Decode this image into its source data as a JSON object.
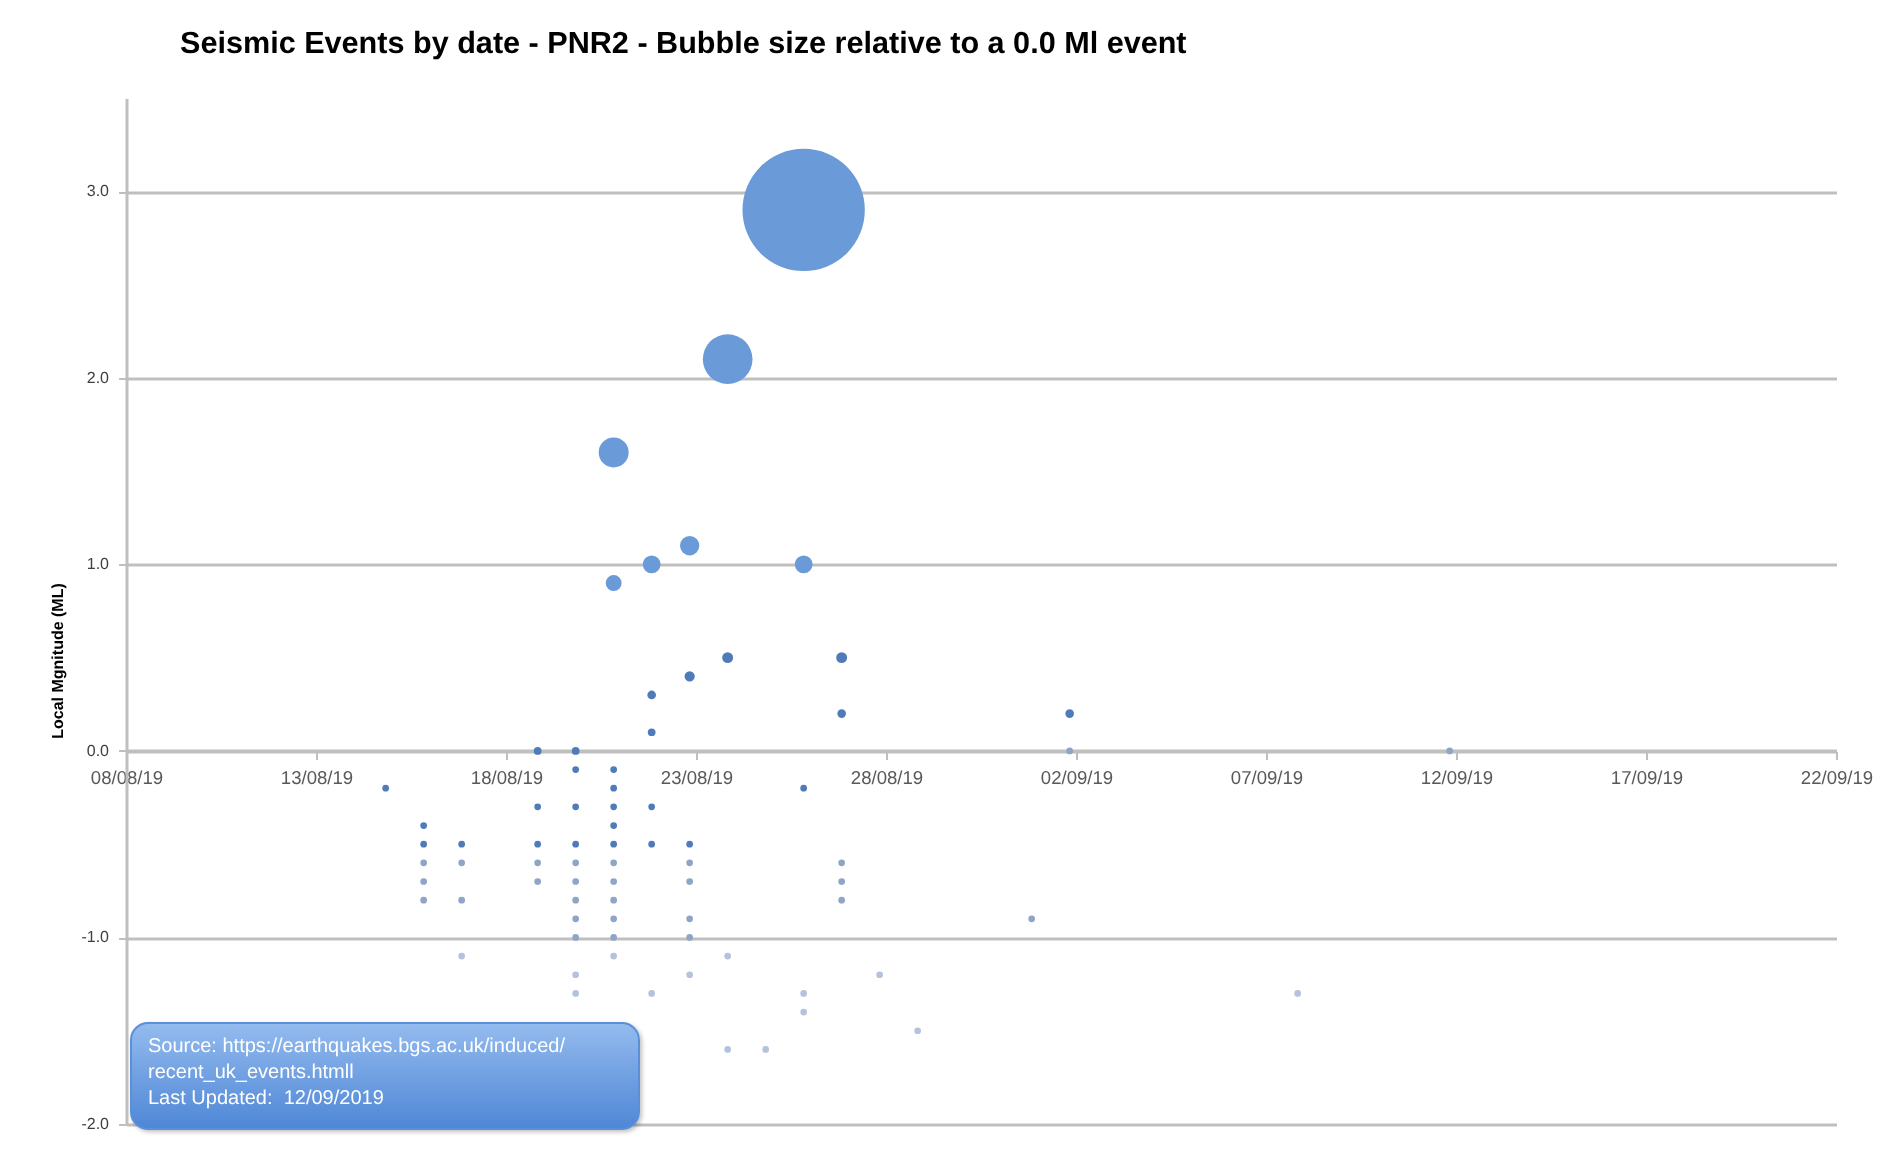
{
  "chart_data": {
    "type": "bubble",
    "title": "Seismic Events by date - PNR2 - Bubble size relative to a 0.0 Ml event",
    "ylabel": "Local Mgnitude (ML)",
    "annotations": [
      "Source: https://earthquakes.bgs.ac.uk/induced/recent_uk_events.htmll",
      "Last Updated:  12/09/2019"
    ],
    "x": [
      "2019-08-15",
      "2019-08-16",
      "2019-08-16",
      "2019-08-16",
      "2019-08-16",
      "2019-08-16",
      "2019-08-17",
      "2019-08-17",
      "2019-08-17",
      "2019-08-17",
      "2019-08-19",
      "2019-08-19",
      "2019-08-19",
      "2019-08-19",
      "2019-08-19",
      "2019-08-20",
      "2019-08-20",
      "2019-08-20",
      "2019-08-20",
      "2019-08-20",
      "2019-08-20",
      "2019-08-20",
      "2019-08-20",
      "2019-08-20",
      "2019-08-20",
      "2019-08-20",
      "2019-08-21",
      "2019-08-21",
      "2019-08-21",
      "2019-08-21",
      "2019-08-21",
      "2019-08-21",
      "2019-08-21",
      "2019-08-21",
      "2019-08-21",
      "2019-08-21",
      "2019-08-21",
      "2019-08-21",
      "2019-08-21",
      "2019-08-22",
      "2019-08-22",
      "2019-08-22",
      "2019-08-22",
      "2019-08-22",
      "2019-08-22",
      "2019-08-23",
      "2019-08-23",
      "2019-08-23",
      "2019-08-23",
      "2019-08-23",
      "2019-08-23",
      "2019-08-23",
      "2019-08-23",
      "2019-08-24",
      "2019-08-24",
      "2019-08-24",
      "2019-08-24",
      "2019-08-25",
      "2019-08-26",
      "2019-08-26",
      "2019-08-26",
      "2019-08-26",
      "2019-08-26",
      "2019-08-27",
      "2019-08-27",
      "2019-08-27",
      "2019-08-27",
      "2019-08-27",
      "2019-08-28",
      "2019-08-29",
      "2019-09-01",
      "2019-09-02",
      "2019-09-02",
      "2019-09-08",
      "2019-09-12"
    ],
    "values": [
      -0.2,
      -0.4,
      -0.5,
      -0.6,
      -0.7,
      -0.8,
      -0.5,
      -0.6,
      -0.8,
      -1.1,
      0.0,
      -0.3,
      -0.5,
      -0.6,
      -0.7,
      0.0,
      -0.1,
      -0.3,
      -0.5,
      -0.6,
      -0.7,
      -0.8,
      -0.9,
      -1.0,
      -1.2,
      -1.3,
      1.6,
      0.9,
      -0.1,
      -0.2,
      -0.3,
      -0.4,
      -0.5,
      -0.6,
      -0.7,
      -0.8,
      -0.9,
      -1.0,
      -1.1,
      1.0,
      0.3,
      0.1,
      -0.3,
      -0.5,
      -1.3,
      1.1,
      0.4,
      -0.5,
      -0.6,
      -0.7,
      -0.9,
      -1.0,
      -1.2,
      2.1,
      0.5,
      -1.1,
      -1.6,
      -1.6,
      2.9,
      1.0,
      -0.2,
      -1.3,
      -1.4,
      0.5,
      0.2,
      -0.6,
      -0.7,
      -0.8,
      -1.2,
      -1.5,
      -0.9,
      0.2,
      0.0,
      -1.3,
      0.0
    ],
    "sizes": [
      0.003,
      0.003,
      0.003,
      0.003,
      0.003,
      0.003,
      0.003,
      0.003,
      0.003,
      0.003,
      0.004,
      0.003,
      0.003,
      0.003,
      0.003,
      0.004,
      0.003,
      0.003,
      0.003,
      0.003,
      0.003,
      0.003,
      0.003,
      0.003,
      0.003,
      0.003,
      0.06,
      0.017,
      0.003,
      0.003,
      0.003,
      0.003,
      0.003,
      0.003,
      0.003,
      0.003,
      0.003,
      0.003,
      0.003,
      0.021,
      0.005,
      0.004,
      0.003,
      0.003,
      0.003,
      0.025,
      0.007,
      0.003,
      0.003,
      0.003,
      0.003,
      0.003,
      0.003,
      0.165,
      0.008,
      0.003,
      0.003,
      0.003,
      1,
      0.021,
      0.003,
      0.003,
      0.003,
      0.008,
      0.005,
      0.003,
      0.003,
      0.003,
      0.003,
      0.003,
      0.003,
      0.005,
      0.003,
      0.003,
      0.003
    ],
    "colors": [
      "#4f7cb8",
      "#4f7cb8",
      "#4f7cb8",
      "#8fa5c8",
      "#8fa5c8",
      "#8fa5c8",
      "#4f7cb8",
      "#8fa5c8",
      "#8fa5c8",
      "#b4c3db",
      "#4f7cb8",
      "#4f7cb8",
      "#4f7cb8",
      "#8fa5c8",
      "#8fa5c8",
      "#4f7cb8",
      "#4f7cb8",
      "#4f7cb8",
      "#4f7cb8",
      "#8fa5c8",
      "#8fa5c8",
      "#8fa5c8",
      "#8fa5c8",
      "#8fa5c8",
      "#b4c3db",
      "#b4c3db",
      "#6b9ad8",
      "#6b9ad8",
      "#4f7cb8",
      "#4f7cb8",
      "#4f7cb8",
      "#4f7cb8",
      "#4f7cb8",
      "#8fa5c8",
      "#8fa5c8",
      "#8fa5c8",
      "#8fa5c8",
      "#8fa5c8",
      "#b4c3db",
      "#6b9ad8",
      "#4f7cb8",
      "#4f7cb8",
      "#4f7cb8",
      "#4f7cb8",
      "#b4c3db",
      "#6b9ad8",
      "#4f7cb8",
      "#4f7cb8",
      "#8fa5c8",
      "#8fa5c8",
      "#8fa5c8",
      "#8fa5c8",
      "#b4c3db",
      "#6b9ad8",
      "#4f7cb8",
      "#b4c3db",
      "#b4c3db",
      "#b4c3db",
      "#6b9ad8",
      "#6b9ad8",
      "#4f7cb8",
      "#b4c3db",
      "#b4c3db",
      "#4f7cb8",
      "#4f7cb8",
      "#8fa5c8",
      "#8fa5c8",
      "#8fa5c8",
      "#b4c3db",
      "#b4c3db",
      "#8fa5c8",
      "#4f7cb8",
      "#8fa5c8",
      "#b4c3db",
      "#8fa5c8"
    ],
    "xlim": [
      "2019-08-08T04:00",
      "2019-09-22T04:00"
    ],
    "xticks": [
      {
        "value": "2019-08-08T04:00",
        "label": "08/08/19"
      },
      {
        "value": "2019-08-13T04:00",
        "label": "13/08/19"
      },
      {
        "value": "2019-08-18T04:00",
        "label": "18/08/19"
      },
      {
        "value": "2019-08-23T04:00",
        "label": "23/08/19"
      },
      {
        "value": "2019-08-28T04:00",
        "label": "28/08/19"
      },
      {
        "value": "2019-09-02T04:00",
        "label": "02/09/19"
      },
      {
        "value": "2019-09-07T04:00",
        "label": "07/09/19"
      },
      {
        "value": "2019-09-12T04:00",
        "label": "12/09/19"
      },
      {
        "value": "2019-09-17T04:00",
        "label": "17/09/19"
      },
      {
        "value": "2019-09-22T04:00",
        "label": "22/09/19"
      }
    ],
    "ylim": [
      -2,
      3.5
    ],
    "yticks": [
      {
        "value": -2,
        "label": "-2.0"
      },
      {
        "value": -1,
        "label": "-1.0"
      },
      {
        "value": 0,
        "label": "0.0"
      },
      {
        "value": 1,
        "label": "1.0"
      },
      {
        "value": 2,
        "label": "2.0"
      },
      {
        "value": 3,
        "label": "3.0"
      }
    ],
    "grid": "y"
  }
}
